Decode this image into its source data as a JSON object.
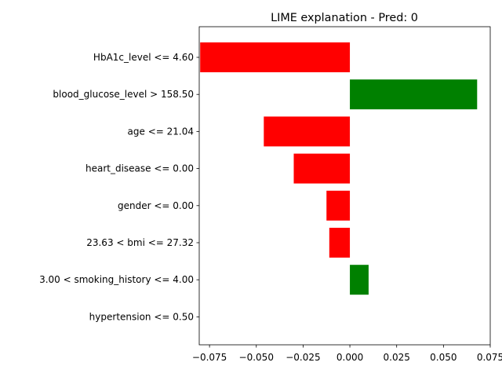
{
  "chart_data": {
    "type": "bar",
    "orientation": "horizontal",
    "title": "LIME explanation - Pred: 0",
    "xlabel": "",
    "ylabel": "",
    "xlim": [
      -0.0805,
      0.075
    ],
    "x_ticks": [
      -0.075,
      -0.05,
      -0.025,
      0.0,
      0.025,
      0.05,
      0.075
    ],
    "x_tick_labels": [
      "−0.075",
      "−0.050",
      "−0.025",
      "0.000",
      "0.025",
      "0.050",
      "0.075"
    ],
    "categories": [
      "HbA1c_level <= 4.60",
      "blood_glucose_level > 158.50",
      "age <= 21.04",
      "heart_disease <= 0.00",
      "gender <= 0.00",
      "23.63 < bmi <= 27.32",
      "3.00 < smoking_history <= 4.00",
      "hypertension <= 0.50"
    ],
    "values": [
      -0.08,
      0.068,
      -0.046,
      -0.03,
      -0.0125,
      -0.011,
      0.01,
      0.0
    ],
    "colors": {
      "positive": "#008000",
      "negative": "#ff0000"
    },
    "grid": false,
    "legend": "none"
  }
}
